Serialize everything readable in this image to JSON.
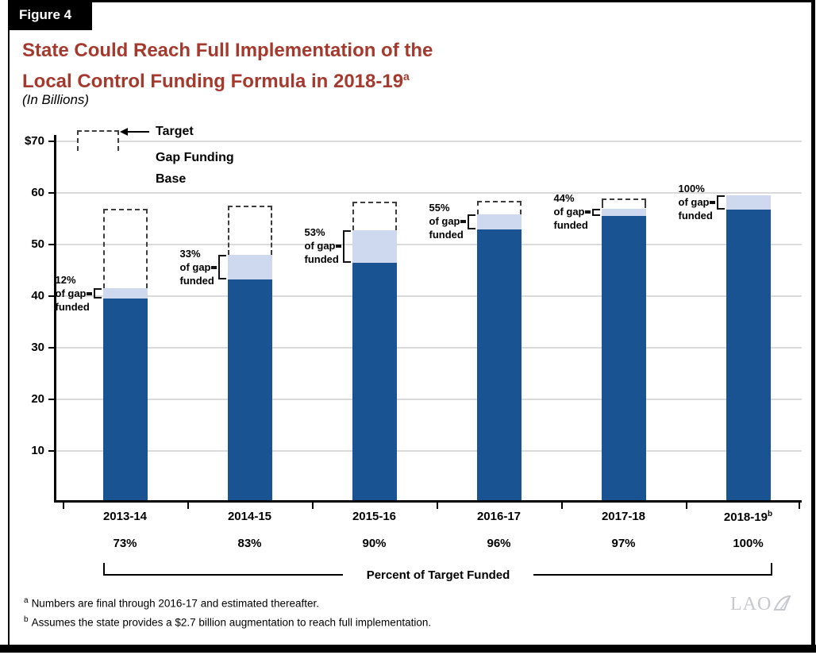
{
  "figure_label": "Figure 4",
  "title": {
    "line1": "State Could Reach Full Implementation of the",
    "line2": "Local Control Funding Formula in 2018-19",
    "superscript": "a"
  },
  "subtitle": "(In Billions)",
  "legend": {
    "target": "Target",
    "gap": "Gap Funding",
    "base": "Base"
  },
  "colors": {
    "base_bar": "#1A5391",
    "gap_bar": "#CED9EF",
    "title_red": "#A5392D",
    "target_dash": "#3d3d3d",
    "gridline": "#dadada",
    "logo_gray": "#c6c8ce"
  },
  "chart_data": {
    "type": "bar",
    "stacked": true,
    "units": "billions of dollars",
    "title": "State Could Reach Full Implementation of the Local Control Funding Formula in 2018-19",
    "categories": [
      "2013-14",
      "2014-15",
      "2015-16",
      "2016-17",
      "2017-18",
      "2018-19"
    ],
    "category_superscripts": [
      "",
      "",
      "",
      "",
      "",
      "b"
    ],
    "series": [
      {
        "name": "Base",
        "color": "#1A5391",
        "values": [
          39.5,
          43.2,
          46.5,
          52.9,
          55.5,
          56.8
        ]
      },
      {
        "name": "Gap Funding",
        "color": "#CED9EF",
        "values": [
          2.0,
          4.8,
          6.3,
          3.0,
          1.5,
          2.7
        ]
      }
    ],
    "target_values": [
      57.0,
      57.6,
      58.3,
      58.5,
      58.9,
      59.5
    ],
    "gap_annotations": [
      [
        "12%",
        "of gap",
        "funded"
      ],
      [
        "33%",
        "of gap",
        "funded"
      ],
      [
        "53%",
        "of gap",
        "funded"
      ],
      [
        "55%",
        "of gap",
        "funded"
      ],
      [
        "44%",
        "of gap",
        "funded"
      ],
      [
        "100%",
        "of gap",
        "funded"
      ]
    ],
    "percent_of_target": [
      "73%",
      "83%",
      "90%",
      "96%",
      "97%",
      "100%"
    ],
    "x_axis_group_label": "Percent of Target Funded",
    "y_axis": {
      "min": 0,
      "max": 70,
      "grid": true,
      "ticks": [
        {
          "label": "$70",
          "value": 70
        },
        {
          "label": "60",
          "value": 60
        },
        {
          "label": "50",
          "value": 50
        },
        {
          "label": "40",
          "value": 40
        },
        {
          "label": "30",
          "value": 30
        },
        {
          "label": "20",
          "value": 20
        },
        {
          "label": "10",
          "value": 10
        }
      ]
    },
    "legend_position": "top-left"
  },
  "footnotes": [
    {
      "marker": "a",
      "text": "Numbers are final through 2016-17 and estimated thereafter."
    },
    {
      "marker": "b",
      "text": "Assumes the state provides a $2.7 billion augmentation to reach full implementation."
    }
  ],
  "logo": "LAO"
}
